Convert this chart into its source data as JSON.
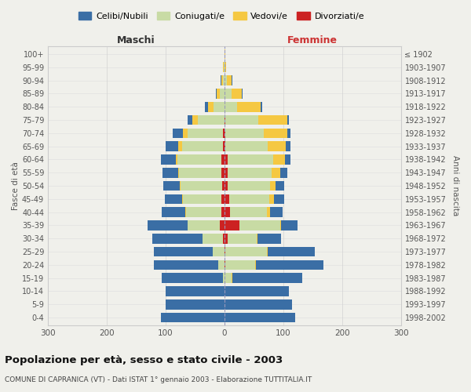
{
  "age_groups": [
    "0-4",
    "5-9",
    "10-14",
    "15-19",
    "20-24",
    "25-29",
    "30-34",
    "35-39",
    "40-44",
    "45-49",
    "50-54",
    "55-59",
    "60-64",
    "65-69",
    "70-74",
    "75-79",
    "80-84",
    "85-89",
    "90-94",
    "95-99",
    "100+"
  ],
  "birth_years": [
    "1998-2002",
    "1993-1997",
    "1988-1992",
    "1983-1987",
    "1978-1982",
    "1973-1977",
    "1968-1972",
    "1963-1967",
    "1958-1962",
    "1953-1957",
    "1948-1952",
    "1943-1947",
    "1938-1942",
    "1933-1937",
    "1928-1932",
    "1923-1927",
    "1918-1922",
    "1913-1917",
    "1908-1912",
    "1903-1907",
    "≤ 1902"
  ],
  "colors": {
    "celibe": "#3a6ea5",
    "coniugato": "#c8dba4",
    "vedovo": "#f5c842",
    "divorziato": "#cc2222"
  },
  "males": {
    "celibe": [
      108,
      100,
      100,
      105,
      110,
      100,
      85,
      68,
      40,
      29,
      28,
      26,
      25,
      22,
      18,
      8,
      5,
      2,
      1,
      0,
      0
    ],
    "coniugato": [
      0,
      0,
      0,
      2,
      10,
      20,
      35,
      55,
      60,
      65,
      70,
      72,
      75,
      70,
      60,
      45,
      18,
      8,
      3,
      1,
      0
    ],
    "vedovo": [
      0,
      0,
      0,
      0,
      0,
      0,
      0,
      0,
      1,
      2,
      2,
      2,
      3,
      6,
      8,
      10,
      10,
      5,
      2,
      1,
      0
    ],
    "divorziato": [
      0,
      0,
      0,
      0,
      0,
      0,
      2,
      8,
      5,
      5,
      4,
      5,
      5,
      2,
      2,
      0,
      0,
      0,
      0,
      0,
      0
    ]
  },
  "females": {
    "nubile": [
      120,
      115,
      110,
      120,
      115,
      80,
      40,
      28,
      22,
      18,
      15,
      12,
      10,
      8,
      5,
      3,
      2,
      1,
      1,
      0,
      0
    ],
    "coniugata": [
      0,
      0,
      0,
      12,
      50,
      70,
      50,
      70,
      62,
      68,
      72,
      75,
      78,
      72,
      65,
      55,
      22,
      12,
      4,
      0,
      0
    ],
    "vedova": [
      0,
      0,
      0,
      1,
      2,
      2,
      1,
      2,
      5,
      8,
      10,
      15,
      20,
      30,
      40,
      50,
      40,
      18,
      8,
      3,
      1
    ],
    "divorziata": [
      0,
      0,
      0,
      0,
      2,
      2,
      5,
      25,
      10,
      8,
      5,
      5,
      5,
      2,
      2,
      2,
      0,
      0,
      0,
      0,
      0
    ]
  },
  "xlim": 300,
  "title": "Popolazione per età, sesso e stato civile - 2003",
  "subtitle": "COMUNE DI CAPRANICA (VT) - Dati ISTAT 1° gennaio 2003 - Elaborazione TUTTITALIA.IT",
  "ylabel_left": "Fasce di età",
  "ylabel_right": "Anni di nascita",
  "xlabel_maschi": "Maschi",
  "xlabel_femmine": "Femmine",
  "legend_labels": [
    "Celibi/Nubili",
    "Coniugati/e",
    "Vedovi/e",
    "Divorziati/e"
  ],
  "background_color": "#f0f0eb",
  "border_color": "#cccccc"
}
